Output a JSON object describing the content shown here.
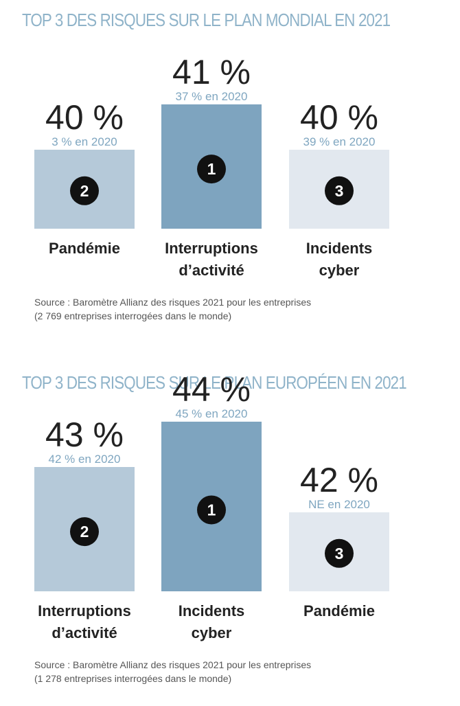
{
  "chart_data": [
    {
      "type": "bar",
      "title": "TOP 3 DES RISQUES SUR LE PLAN MONDIAL EN 2021",
      "categories": [
        [
          "Pandémie"
        ],
        [
          "Interruptions",
          "d’activité"
        ],
        [
          "Incidents",
          "cyber"
        ]
      ],
      "values": [
        40,
        41,
        40
      ],
      "value_labels": [
        "40 %",
        "41 %",
        "40 %"
      ],
      "previous_labels": [
        "3 % en 2020",
        "37 % en 2020",
        "39 % en 2020"
      ],
      "ranks": [
        "2",
        "1",
        "3"
      ],
      "bar_colors": [
        "#b5c9d9",
        "#7ea4bf",
        "#e2e8ef"
      ],
      "source": [
        "Source : Baromètre Allianz des risques 2021 pour les entreprises",
        "(2 769 entreprises interrogées dans le monde)"
      ]
    },
    {
      "type": "bar",
      "title": "TOP 3 DES RISQUES SUR LE PLAN EUROPÉEN EN 2021",
      "categories": [
        [
          "Interruptions",
          "d’activité"
        ],
        [
          "Incidents",
          "cyber"
        ],
        [
          "Pandémie"
        ]
      ],
      "values": [
        43,
        44,
        42
      ],
      "value_labels": [
        "43 %",
        "44 %",
        "42 %"
      ],
      "previous_labels": [
        "42 % en 2020",
        "45 % en 2020",
        "NE en 2020"
      ],
      "ranks": [
        "2",
        "1",
        "3"
      ],
      "bar_colors": [
        "#b5c9d9",
        "#7ea4bf",
        "#e2e8ef"
      ],
      "source": [
        "Source : Baromètre Allianz des risques 2021 pour les entreprises",
        "(1 278 entreprises interrogées dans le monde)"
      ]
    }
  ]
}
